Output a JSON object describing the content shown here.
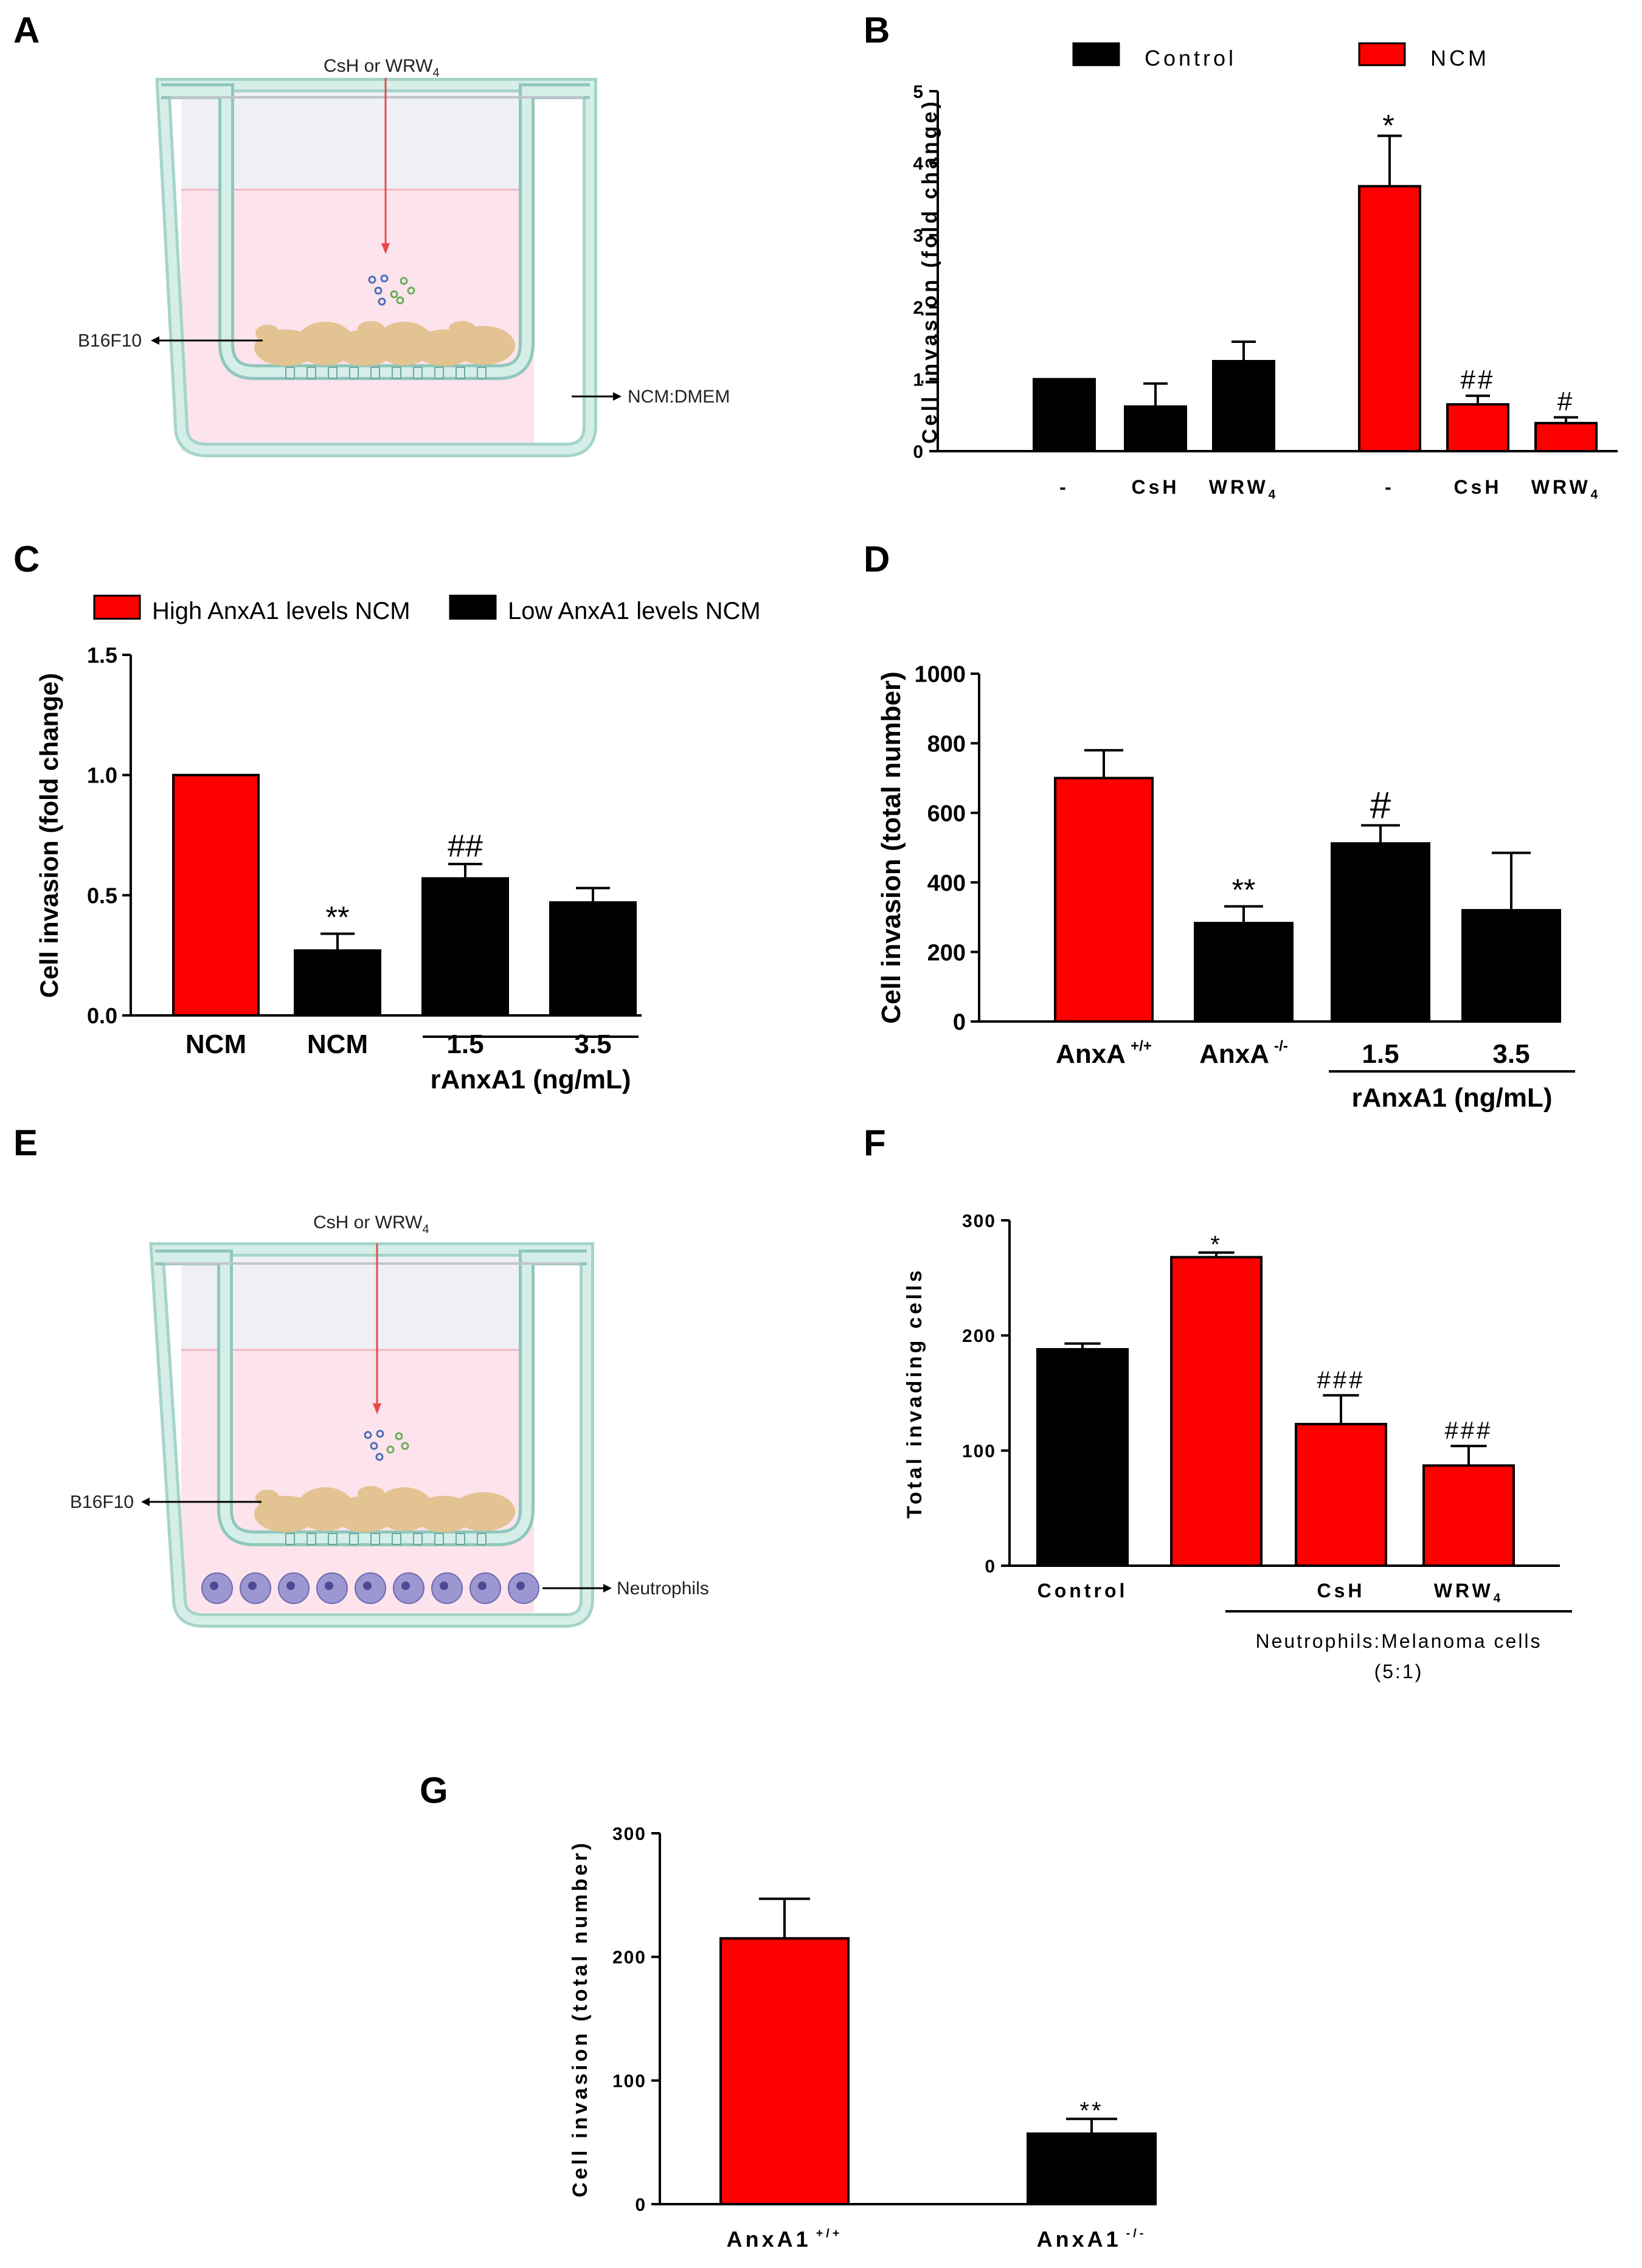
{
  "colors": {
    "red": "#FF0000",
    "black": "#000000",
    "well_fill": "#FDE3EC",
    "well_top": "#EEF0F6",
    "well_border": "#A6D4CA",
    "well_inner": "#D5EEE8",
    "arrow": "#E84A4A",
    "cells": "#E2C28E",
    "neutrophil": "#9D97D1"
  },
  "panel_labels": {
    "a": "A",
    "b": "B",
    "c": "C",
    "d": "D",
    "e": "E",
    "f": "F",
    "g": "G"
  },
  "panel_a": {
    "treatment": "CsH or WRW",
    "treatment_sub": "4",
    "cells": "B16F10",
    "medium": "NCM:DMEM"
  },
  "panel_e": {
    "treatment": "CsH or WRW",
    "treatment_sub": "4",
    "cells": "B16F10",
    "bottom": "Neutrophils"
  },
  "chart_data": [
    {
      "panel": "B",
      "type": "bar",
      "ylabel": "Cell invasion (fold change)",
      "ylim": [
        0,
        5
      ],
      "yticks": [
        "0",
        "1",
        "2",
        "3",
        "4",
        "5"
      ],
      "legend": [
        {
          "name": "Control",
          "color": "#000000"
        },
        {
          "name": "NCM",
          "color": "#FF0000"
        }
      ],
      "bars": [
        {
          "label": "-",
          "value": 1.0,
          "err": 0,
          "color": "#000000",
          "sig": ""
        },
        {
          "label": "CsH",
          "value": 0.62,
          "err": 0.32,
          "color": "#000000",
          "sig": ""
        },
        {
          "label": "WRW",
          "sub": "4",
          "value": 1.25,
          "err": 0.27,
          "color": "#000000",
          "sig": ""
        },
        {
          "label": "-",
          "value": 3.68,
          "err": 0.7,
          "color": "#FF0000",
          "sig": "*"
        },
        {
          "label": "CsH",
          "value": 0.65,
          "err": 0.12,
          "color": "#FF0000",
          "sig": "##"
        },
        {
          "label": "WRW",
          "sub": "4",
          "value": 0.39,
          "err": 0.08,
          "color": "#FF0000",
          "sig": "#"
        }
      ]
    },
    {
      "panel": "C",
      "type": "bar",
      "ylabel": "Cell invasion (fold change)",
      "ylim": [
        0,
        1.5
      ],
      "yticks": [
        "0.0",
        "0.5",
        "1.0",
        "1.5"
      ],
      "legend": [
        {
          "name": "High AnxA1 levels NCM",
          "color": "#FF0000"
        },
        {
          "name": "Low AnxA1 levels NCM",
          "color": "#000000"
        }
      ],
      "bars": [
        {
          "label": "NCM",
          "value": 1.0,
          "err": 0,
          "color": "#FF0000",
          "sig": ""
        },
        {
          "label": "NCM",
          "value": 0.27,
          "err": 0.07,
          "color": "#000000",
          "sig": "**"
        },
        {
          "label": "1.5",
          "value": 0.57,
          "err": 0.06,
          "color": "#000000",
          "sig": "##"
        },
        {
          "label": "3.5",
          "value": 0.47,
          "err": 0.06,
          "color": "#000000",
          "sig": ""
        }
      ],
      "group_label": "rAnxA1 (ng/mL)"
    },
    {
      "panel": "D",
      "type": "bar",
      "ylabel": "Cell invasion (total number)",
      "ylim": [
        0,
        1000
      ],
      "yticks": [
        "0",
        "200",
        "400",
        "600",
        "800",
        "1000"
      ],
      "bars": [
        {
          "label": "AnxA",
          "sup": "+/+",
          "value": 700,
          "err": 80,
          "color": "#FF0000",
          "sig": ""
        },
        {
          "label": "AnxA",
          "sup": "-/-",
          "value": 283,
          "err": 48,
          "color": "#000000",
          "sig": "**"
        },
        {
          "label": "1.5",
          "value": 512,
          "err": 52,
          "color": "#000000",
          "sig": "#"
        },
        {
          "label": "3.5",
          "value": 320,
          "err": 165,
          "color": "#000000",
          "sig": ""
        }
      ],
      "group_label": "rAnxA1 (ng/mL)"
    },
    {
      "panel": "F",
      "type": "bar",
      "ylabel": "Total invading cells",
      "ylim": [
        0,
        300
      ],
      "yticks": [
        "0",
        "100",
        "200",
        "300"
      ],
      "bars": [
        {
          "label": "Control",
          "value": 188,
          "err": 5,
          "color": "#000000",
          "sig": ""
        },
        {
          "label": "",
          "value": 268,
          "err": 4,
          "color": "#FF0000",
          "sig": "*"
        },
        {
          "label": "CsH",
          "value": 123,
          "err": 25,
          "color": "#FF0000",
          "sig": "###"
        },
        {
          "label": "WRW",
          "sub": "4",
          "value": 87,
          "err": 17,
          "color": "#FF0000",
          "sig": "###"
        }
      ],
      "group_label": "Neutrophils:Melanoma cells",
      "group_label2": "(5:1)"
    },
    {
      "panel": "G",
      "type": "bar",
      "ylabel": "Cell invasion (total number)",
      "ylim": [
        0,
        300
      ],
      "yticks": [
        "0",
        "100",
        "200",
        "300"
      ],
      "bars": [
        {
          "label": "AnxA1",
          "sup": "+/+",
          "value": 215,
          "err": 32,
          "color": "#FF0000",
          "sig": ""
        },
        {
          "label": "AnxA1",
          "sup": "-/-",
          "value": 57,
          "err": 12,
          "color": "#000000",
          "sig": "**"
        }
      ]
    }
  ]
}
